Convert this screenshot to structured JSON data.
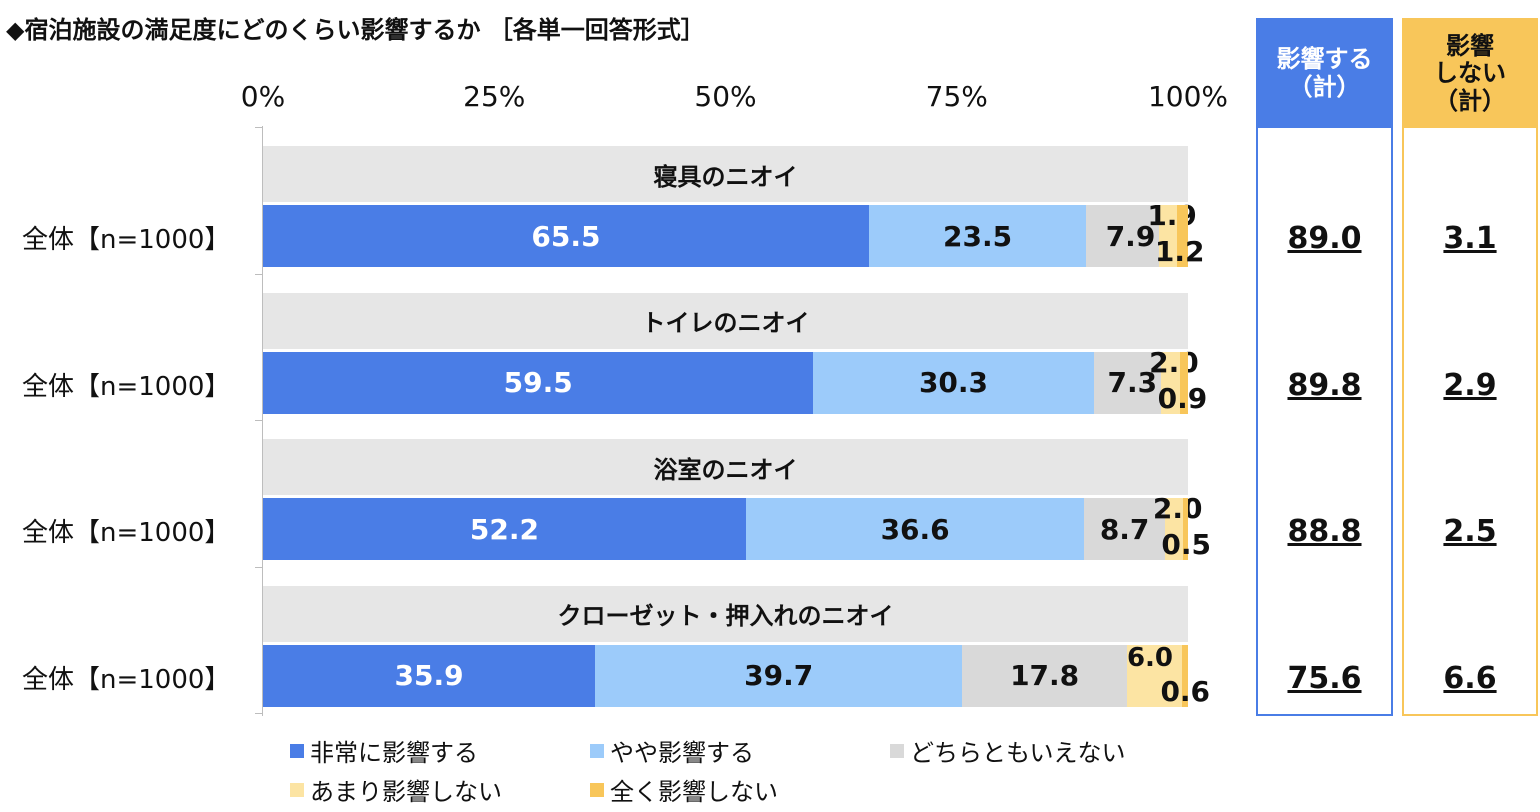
{
  "title": "◆宿泊施設の満足度にどのくらい影響するか ［各単一回答形式］",
  "colors": {
    "very": "#4a7de6",
    "somewhat": "#9ccbfa",
    "neither": "#d9d9d9",
    "not_much": "#fce4a3",
    "not_at_all": "#f8c65a"
  },
  "summary": {
    "affect_label": "影響する\n（計）",
    "noaffect_label": "影響\nしない\n（計）"
  },
  "chart_data": {
    "type": "bar",
    "orientation": "horizontal-stacked",
    "xlim": [
      0,
      100
    ],
    "x_ticks": [
      "0%",
      "25%",
      "50%",
      "75%",
      "100%"
    ],
    "legend_position": "bottom",
    "series": [
      {
        "name": "非常に影響する"
      },
      {
        "name": "やや影響する"
      },
      {
        "name": "どちらともいえない"
      },
      {
        "name": "あまり影響しない"
      },
      {
        "name": "全く影響しない"
      }
    ],
    "rows": [
      {
        "title": "寝具のニオイ",
        "label": "全体【n=1000】",
        "values": [
          65.5,
          23.5,
          7.9,
          1.9,
          1.2
        ],
        "labels": [
          "65.5",
          "23.5",
          "7.9",
          "1.9",
          "1.2"
        ],
        "affect_total": "89.0",
        "noaffect_total": "3.1"
      },
      {
        "title": "トイレのニオイ",
        "label": "全体【n=1000】",
        "values": [
          59.5,
          30.3,
          7.3,
          2.0,
          0.9
        ],
        "labels": [
          "59.5",
          "30.3",
          "7.3",
          "2.0",
          "0.9"
        ],
        "affect_total": "89.8",
        "noaffect_total": "2.9"
      },
      {
        "title": "浴室のニオイ",
        "label": "全体【n=1000】",
        "values": [
          52.2,
          36.6,
          8.7,
          2.0,
          0.5
        ],
        "labels": [
          "52.2",
          "36.6",
          "8.7",
          "2.0",
          "0.5"
        ],
        "affect_total": "88.8",
        "noaffect_total": "2.5"
      },
      {
        "title": "クローゼット・押入れのニオイ",
        "label": "全体【n=1000】",
        "values": [
          35.9,
          39.7,
          17.8,
          6.0,
          0.6
        ],
        "labels": [
          "35.9",
          "39.7",
          "17.8",
          "6.0",
          "0.6"
        ],
        "affect_total": "75.6",
        "noaffect_total": "6.6"
      }
    ]
  }
}
